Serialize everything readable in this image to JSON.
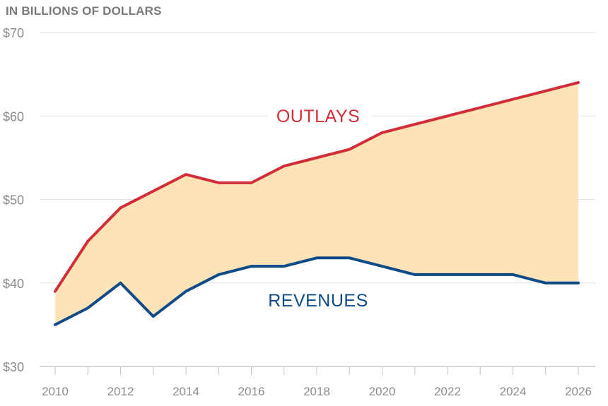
{
  "chart_data": {
    "type": "line",
    "unit_label": "IN BILLIONS OF DOLLARS",
    "ylim": [
      30,
      70
    ],
    "yticks": [
      30,
      40,
      50,
      60,
      70
    ],
    "ytick_labels": [
      "$30",
      "$40",
      "$50",
      "$60",
      "$70"
    ],
    "x": [
      2010,
      2011,
      2012,
      2013,
      2014,
      2015,
      2016,
      2017,
      2018,
      2019,
      2020,
      2021,
      2022,
      2023,
      2024,
      2025,
      2026
    ],
    "xticks": [
      2010,
      2012,
      2014,
      2016,
      2018,
      2020,
      2022,
      2024,
      2026
    ],
    "grid": true,
    "series": [
      {
        "name": "OUTLAYS",
        "color": "#d22e3a",
        "values": [
          39,
          45,
          49,
          51,
          53,
          52,
          52,
          54,
          55,
          56,
          58,
          59,
          60,
          61,
          62,
          63,
          64
        ]
      },
      {
        "name": "REVENUES",
        "color": "#0e4b87",
        "values": [
          35,
          37,
          40,
          36,
          39,
          41,
          42,
          42,
          43,
          43,
          42,
          41,
          41,
          41,
          41,
          40,
          40
        ]
      }
    ],
    "fill_between_color": "#fde3b6"
  }
}
